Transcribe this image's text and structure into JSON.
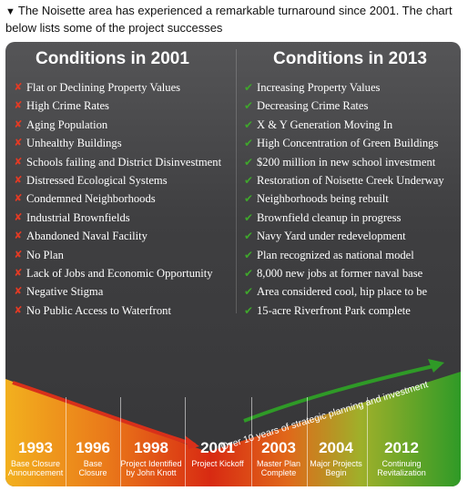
{
  "intro": {
    "triangle": "▼",
    "text": "The Noisette area has experienced a remarkable turnaround since 2001. The chart below lists some of the project successes"
  },
  "left_column": {
    "title": "Conditions in 2001",
    "items": [
      "Flat or Declining Property Values",
      "High Crime Rates",
      "Aging Population",
      "Unhealthy Buildings",
      "Schools failing and District Disinvestment",
      "Distressed Ecological Systems",
      "Condemned Neighborhoods",
      "Industrial Brownfields",
      "Abandoned Naval Facility",
      "No Plan",
      "Lack of Jobs and Economic Opportunity",
      "Negative Stigma",
      "No Public Access to Waterfront"
    ]
  },
  "right_column": {
    "title": "Conditions in 2013",
    "items": [
      "Increasing Property Values",
      "Decreasing Crime Rates",
      "X & Y Generation Moving In",
      "High Concentration of Green Buildings",
      "$200 million in new school investment",
      "Restoration of Noisette Creek Underway",
      "Neighborhoods being rebuilt",
      "Brownfield cleanup in progress",
      "Navy Yard under redevelopment",
      "Plan recognized as national model",
      "8,000 new jobs at former naval base",
      "Area considered cool, hip place to be",
      "15-acre Riverfront Park complete"
    ]
  },
  "marks": {
    "bad": "✘",
    "good": "✔"
  },
  "colors": {
    "bad": "#e23a24",
    "good": "#3fa62c",
    "card": "#3f3f41"
  },
  "timeline": {
    "arrow_caption": "Over 10 years of strategic planning and investment",
    "milestones": [
      {
        "year": "1993",
        "event_lines": [
          "Base Closure",
          "Announcement"
        ]
      },
      {
        "year": "1996",
        "event_lines": [
          "Base",
          "Closure"
        ]
      },
      {
        "year": "1998",
        "event_lines": [
          "Project Identified",
          "by John Knott"
        ]
      },
      {
        "year": "2001",
        "event_lines": [
          "Project Kickoff"
        ]
      },
      {
        "year": "2003",
        "event_lines": [
          "Master Plan",
          "Complete"
        ]
      },
      {
        "year": "2004",
        "event_lines": [
          "Major Projects",
          "Begin"
        ]
      },
      {
        "year": "2012",
        "event_lines": [
          "Continuing",
          "Revitalization"
        ]
      }
    ]
  }
}
